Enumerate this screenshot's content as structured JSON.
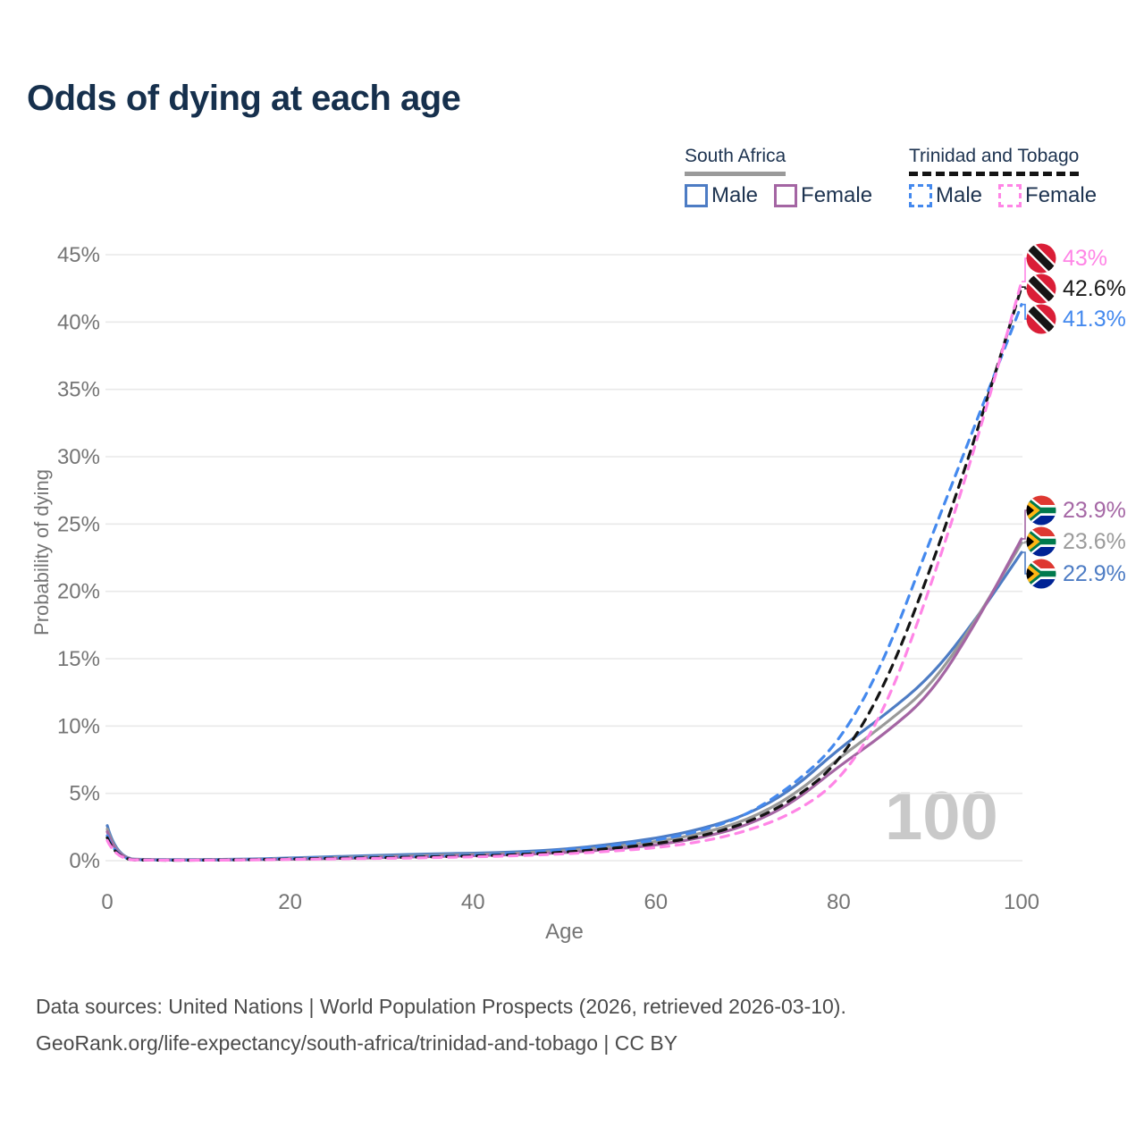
{
  "title": "Odds of dying at each age",
  "watermark": "100",
  "legend": {
    "south_africa": {
      "title": "South Africa",
      "male": "Male",
      "female": "Female"
    },
    "trinidad_and_tobago": {
      "title": "Trinidad and Tobago",
      "male": "Male",
      "female": "Female"
    }
  },
  "colors": {
    "sa_male": "#4d7cc4",
    "sa_female": "#a465a3",
    "sa_overall": "#999999",
    "tt_male": "#4489ee",
    "tt_female": "#ff85e6",
    "tt_overall": "#141414",
    "title_text": "#16304d",
    "legend_text": "#1d3350",
    "axis_text": "#757575",
    "grid": "#e9e9e9",
    "watermark": "#c9c9c9",
    "footer_text": "#4b4b4b"
  },
  "footer": {
    "line1": "Data sources: United Nations | World Population Prospects (2026, retrieved 2026-03-10).",
    "line2": "GeoRank.org/life-expectancy/south-africa/trinidad-and-tobago | CC BY"
  },
  "chart_data": {
    "type": "line",
    "title": "Odds of dying at each age",
    "xlabel": "Age",
    "ylabel": "Probability of dying",
    "xlim": [
      0,
      100
    ],
    "ylim": [
      0,
      45
    ],
    "xticks": [
      0,
      20,
      40,
      60,
      80,
      100
    ],
    "yticks": [
      0,
      5,
      10,
      15,
      20,
      25,
      30,
      35,
      40,
      45
    ],
    "ytick_suffix": "%",
    "grid": "horizontal",
    "legend_position": "top-right",
    "x": [
      0,
      1,
      5,
      10,
      15,
      20,
      25,
      30,
      35,
      40,
      45,
      50,
      55,
      60,
      65,
      70,
      75,
      80,
      85,
      90,
      95,
      100
    ],
    "series": [
      {
        "name": "South Africa Male",
        "style": "solid",
        "color": "#4d7cc4",
        "values": [
          2.6,
          0.16,
          0.07,
          0.07,
          0.11,
          0.2,
          0.3,
          0.4,
          0.5,
          0.55,
          0.65,
          0.85,
          1.2,
          1.65,
          2.35,
          3.4,
          5.3,
          8.3,
          10.8,
          13.6,
          17.9,
          22.9
        ],
        "end_value": 22.9
      },
      {
        "name": "South Africa Overall",
        "style": "solid",
        "color": "#999999",
        "values": [
          2.35,
          0.14,
          0.06,
          0.055,
          0.085,
          0.15,
          0.23,
          0.31,
          0.4,
          0.46,
          0.55,
          0.72,
          1.0,
          1.4,
          2.0,
          3.0,
          4.8,
          7.6,
          10.1,
          12.9,
          17.8,
          23.6
        ],
        "end_value": 23.6
      },
      {
        "name": "South Africa Female",
        "style": "solid",
        "color": "#a465a3",
        "values": [
          2.15,
          0.12,
          0.05,
          0.045,
          0.065,
          0.11,
          0.16,
          0.23,
          0.3,
          0.37,
          0.45,
          0.6,
          0.82,
          1.15,
          1.7,
          2.6,
          4.3,
          7.0,
          9.4,
          12.3,
          17.6,
          23.9
        ],
        "end_value": 23.9
      },
      {
        "name": "Trinidad and Tobago Male",
        "style": "dashed",
        "color": "#4489ee",
        "values": [
          1.85,
          0.1,
          0.04,
          0.04,
          0.08,
          0.16,
          0.22,
          0.28,
          0.34,
          0.42,
          0.55,
          0.78,
          1.1,
          1.5,
          2.2,
          3.4,
          5.6,
          8.7,
          14.8,
          23.8,
          32.5,
          41.3
        ],
        "end_value": 41.3
      },
      {
        "name": "Trinidad and Tobago Overall",
        "style": "dashed",
        "color": "#141414",
        "values": [
          1.7,
          0.09,
          0.035,
          0.035,
          0.065,
          0.12,
          0.18,
          0.22,
          0.28,
          0.35,
          0.45,
          0.63,
          0.9,
          1.25,
          1.8,
          2.8,
          4.5,
          7.2,
          12.8,
          21.5,
          31.5,
          42.6
        ],
        "end_value": 42.6
      },
      {
        "name": "Trinidad and Tobago Female",
        "style": "dashed",
        "color": "#ff85e6",
        "values": [
          1.5,
          0.08,
          0.03,
          0.03,
          0.05,
          0.09,
          0.13,
          0.17,
          0.22,
          0.28,
          0.37,
          0.5,
          0.7,
          0.95,
          1.4,
          2.2,
          3.5,
          5.8,
          11.0,
          20.2,
          30.8,
          43.0
        ],
        "end_value": 43.0
      }
    ],
    "end_labels": [
      {
        "text": "43%",
        "value": 43.0,
        "color": "#ff85e6",
        "flag": "trinidad-and-tobago",
        "series_index": 5
      },
      {
        "text": "42.6%",
        "value": 42.6,
        "color": "#1a1a1a",
        "flag": "trinidad-and-tobago",
        "series_index": 4
      },
      {
        "text": "41.3%",
        "value": 41.3,
        "color": "#4489ee",
        "flag": "trinidad-and-tobago",
        "series_index": 3
      },
      {
        "text": "23.9%",
        "value": 23.9,
        "color": "#a567a5",
        "flag": "south-africa",
        "series_index": 2
      },
      {
        "text": "23.6%",
        "value": 23.6,
        "color": "#9b9b9b",
        "flag": "south-africa",
        "series_index": 1
      },
      {
        "text": "22.9%",
        "value": 22.9,
        "color": "#4d7cc4",
        "flag": "south-africa",
        "series_index": 0
      }
    ]
  }
}
